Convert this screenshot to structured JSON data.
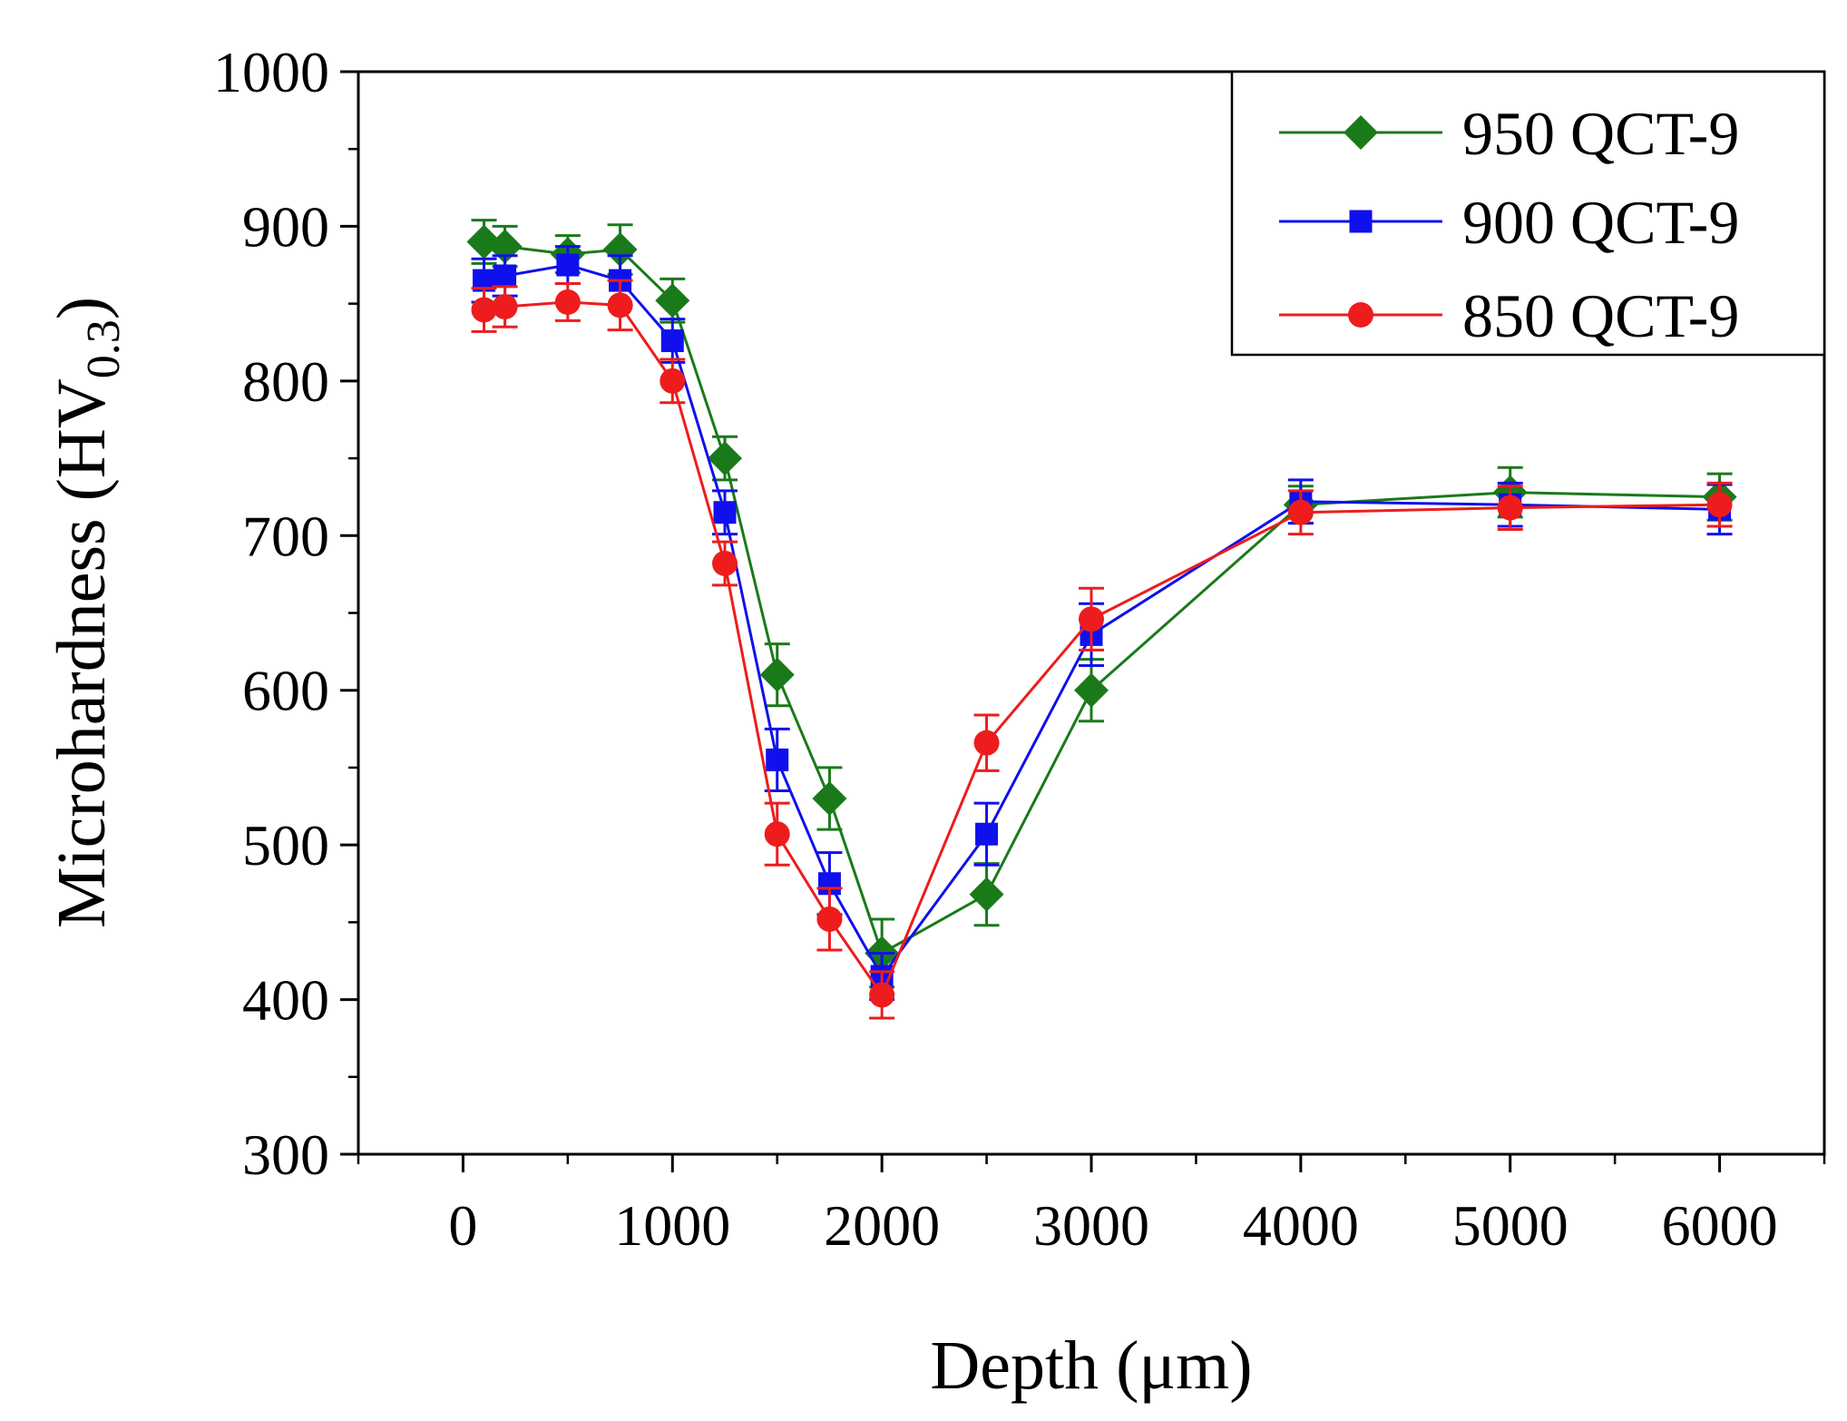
{
  "chart_data": {
    "type": "line",
    "title": "",
    "xlabel": "Depth (μm)",
    "ylabel_main": "Microhardness (HV",
    "ylabel_sub": "0.3",
    "ylabel_close": ")",
    "xlim": [
      -500,
      6500
    ],
    "ylim": [
      300,
      1000
    ],
    "xticks": [
      0,
      1000,
      2000,
      3000,
      4000,
      5000,
      6000
    ],
    "xtick_labels": [
      "0",
      "1000",
      "2000",
      "3000",
      "4000",
      "5000",
      "6000"
    ],
    "yticks": [
      300,
      400,
      500,
      600,
      700,
      800,
      900,
      1000
    ],
    "ytick_labels": [
      "300",
      "400",
      "500",
      "600",
      "700",
      "800",
      "900",
      "1000"
    ],
    "legend_position": "top-right",
    "series": [
      {
        "name": "950 QCT-9",
        "color": "#1a7a1a",
        "marker": "diamond",
        "x": [
          100,
          200,
          500,
          750,
          1000,
          1250,
          1500,
          1750,
          2000,
          2500,
          3000,
          4000,
          5000,
          6000
        ],
        "y": [
          890,
          887,
          882,
          885,
          852,
          750,
          610,
          530,
          430,
          468,
          600,
          720,
          728,
          725
        ],
        "err": [
          14,
          13,
          12,
          16,
          14,
          14,
          20,
          20,
          22,
          20,
          20,
          12,
          16,
          15
        ]
      },
      {
        "name": "900 QCT-9",
        "color": "#1010ee",
        "marker": "square",
        "x": [
          100,
          200,
          500,
          750,
          1000,
          1250,
          1500,
          1750,
          2000,
          2500,
          3000,
          4000,
          5000,
          6000
        ],
        "y": [
          865,
          868,
          875,
          865,
          826,
          715,
          555,
          475,
          415,
          507,
          636,
          722,
          720,
          717
        ],
        "err": [
          14,
          13,
          12,
          16,
          14,
          14,
          20,
          20,
          15,
          20,
          20,
          14,
          14,
          16
        ]
      },
      {
        "name": "850 QCT-9",
        "color": "#ee1c1c",
        "marker": "circle",
        "x": [
          100,
          200,
          500,
          750,
          1000,
          1250,
          1500,
          1750,
          2000,
          2500,
          3000,
          4000,
          5000,
          6000
        ],
        "y": [
          846,
          848,
          851,
          849,
          800,
          682,
          507,
          452,
          403,
          566,
          646,
          715,
          718,
          720
        ],
        "err": [
          14,
          13,
          12,
          16,
          14,
          14,
          20,
          20,
          15,
          18,
          20,
          14,
          14,
          14
        ]
      }
    ]
  }
}
